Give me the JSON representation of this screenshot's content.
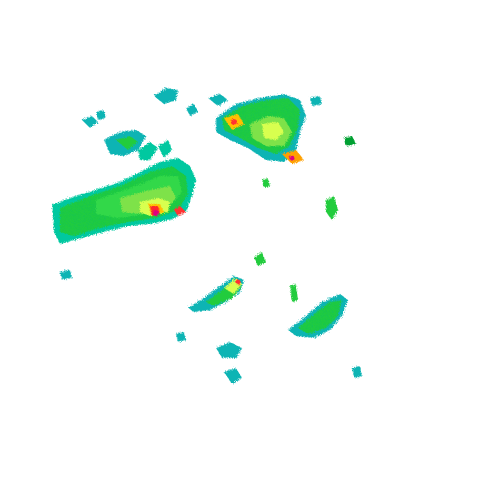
{
  "map": {
    "kind": "weather-radar-reflectivity",
    "background": "#ffffff",
    "palette": [
      "#00c8c8",
      "#10b4b4",
      "#00d03c",
      "#00a032",
      "#66e04a",
      "#c8ff50",
      "#ffff00",
      "#ffa000",
      "#ff3030",
      "#e0007e"
    ]
  }
}
